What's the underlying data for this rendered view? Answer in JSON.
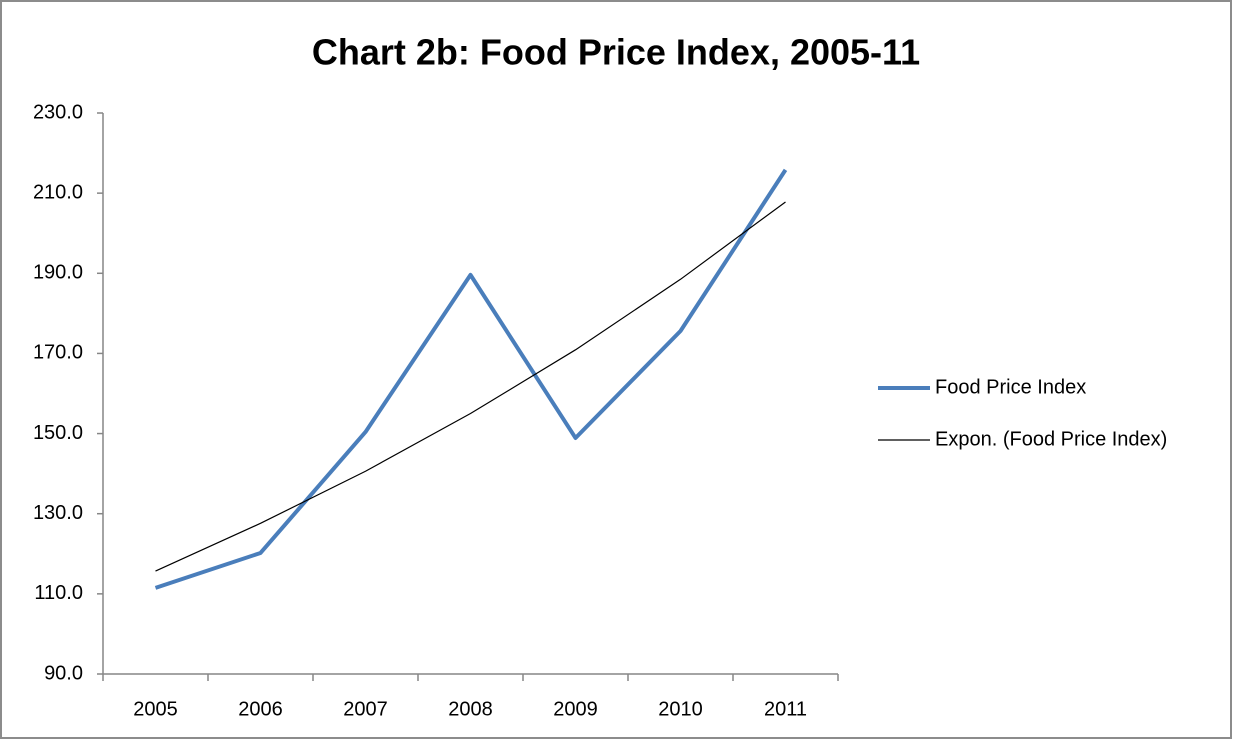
{
  "chart_data": {
    "type": "line",
    "title": "Chart 2b: Food Price Index, 2005-11",
    "categories": [
      "2005",
      "2006",
      "2007",
      "2008",
      "2009",
      "2010",
      "2011"
    ],
    "series": [
      {
        "name": "Food Price Index",
        "color": "#4a7ebb",
        "values": [
          111.5,
          120.2,
          150.4,
          189.6,
          148.9,
          175.6,
          215.8
        ]
      },
      {
        "name": "Expon. (Food Price Index)",
        "color": "#000000",
        "values": [
          115.7,
          127.6,
          140.6,
          155.0,
          170.9,
          188.5,
          207.8
        ]
      }
    ],
    "ylim": [
      90,
      230
    ],
    "yticks": [
      {
        "value": 90,
        "label": "90.0"
      },
      {
        "value": 110,
        "label": "110.0"
      },
      {
        "value": 130,
        "label": "130.0"
      },
      {
        "value": 150,
        "label": "150.0"
      },
      {
        "value": 170,
        "label": "170.0"
      },
      {
        "value": 190,
        "label": "190.0"
      },
      {
        "value": 210,
        "label": "210.0"
      },
      {
        "value": 230,
        "label": "230.0"
      }
    ],
    "grid": false,
    "legend": "right"
  }
}
